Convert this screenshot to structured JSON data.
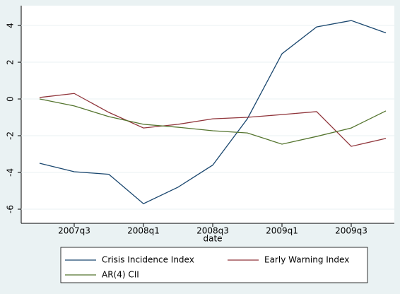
{
  "chart_data": {
    "type": "line",
    "x_label": "date",
    "categories": [
      null,
      "2007q3",
      null,
      "2008q1",
      null,
      "2008q3",
      null,
      "2009q1",
      null,
      "2009q3",
      null
    ],
    "series": [
      {
        "name": "Crisis Incidence Index",
        "color": "#1a476f",
        "values": [
          -3.5,
          -3.96,
          -4.1,
          -5.7,
          -4.8,
          -3.6,
          -1.08,
          2.46,
          3.92,
          4.27,
          3.6
        ]
      },
      {
        "name": "Early Warning Index",
        "color": "#90353b",
        "values": [
          0.08,
          0.3,
          -0.73,
          -1.58,
          -1.38,
          -1.08,
          -1.0,
          -0.85,
          -0.69,
          -2.58,
          -2.15
        ]
      },
      {
        "name": "AR(4) CII",
        "color": "#55752f",
        "values": [
          0,
          -0.38,
          -0.96,
          -1.38,
          -1.54,
          -1.73,
          -1.85,
          -2.46,
          -2.04,
          -1.58,
          -0.65
        ]
      }
    ],
    "ylim": [
      -6.77,
      5.08
    ],
    "yticks": [
      -6,
      -4,
      -2,
      0,
      2,
      4
    ],
    "grid": true
  }
}
